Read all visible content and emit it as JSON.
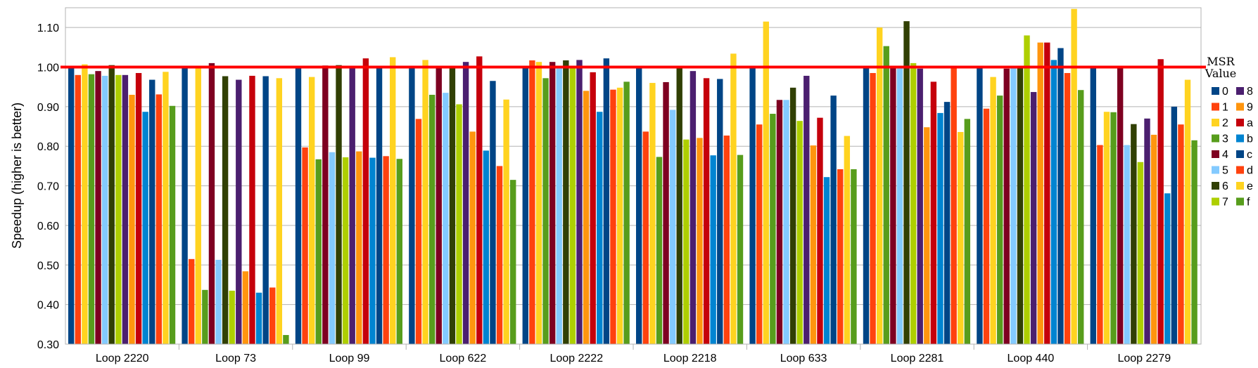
{
  "chart_data": {
    "type": "bar",
    "ylabel": "Speedup (higher is better)",
    "xlabel": "",
    "ylim": [
      0.3,
      1.15
    ],
    "yticks": [
      "0.30",
      "0.40",
      "0.50",
      "0.60",
      "0.70",
      "0.80",
      "0.90",
      "1.00",
      "1.10"
    ],
    "grid": true,
    "reference_line": 1.0,
    "legend_title_line1": "MSR",
    "legend_title_line2": "Value",
    "legend_placement": "right",
    "categories": [
      "Loop 2220",
      "Loop 73",
      "Loop 99",
      "Loop 622",
      "Loop 2222",
      "Loop 2218",
      "Loop 633",
      "Loop 2281",
      "Loop 440",
      "Loop 2279"
    ],
    "series": [
      {
        "name": "0",
        "color": "#004586",
        "values": [
          1.0,
          1.0,
          1.0,
          1.0,
          1.0,
          1.0,
          1.0,
          1.0,
          1.0,
          1.0
        ]
      },
      {
        "name": "1",
        "color": "#ff420e",
        "values": [
          0.98,
          0.515,
          0.797,
          0.869,
          1.017,
          0.837,
          0.855,
          0.985,
          0.895,
          0.803
        ]
      },
      {
        "name": "2",
        "color": "#ffd320",
        "values": [
          1.007,
          1.0,
          0.975,
          1.018,
          1.013,
          0.96,
          1.115,
          1.1,
          0.975,
          0.887
        ]
      },
      {
        "name": "3",
        "color": "#579d1c",
        "values": [
          0.982,
          0.437,
          0.767,
          0.93,
          0.972,
          0.773,
          0.882,
          1.053,
          0.928,
          0.886
        ]
      },
      {
        "name": "4",
        "color": "#7e0021",
        "values": [
          0.99,
          1.01,
          1.004,
          1.0,
          1.013,
          0.962,
          0.917,
          1.0,
          0.996,
          1.0
        ]
      },
      {
        "name": "5",
        "color": "#83caff",
        "values": [
          0.978,
          0.513,
          0.785,
          0.935,
          0.997,
          0.892,
          0.917,
          1.0,
          0.997,
          0.803
        ]
      },
      {
        "name": "6",
        "color": "#314004",
        "values": [
          1.005,
          0.977,
          1.005,
          1.0,
          1.017,
          1.0,
          0.948,
          1.116,
          1.0,
          0.856
        ]
      },
      {
        "name": "7",
        "color": "#aecf00",
        "values": [
          0.98,
          0.435,
          0.772,
          0.906,
          1.0,
          0.817,
          0.864,
          1.01,
          1.08,
          0.76
        ]
      },
      {
        "name": "8",
        "color": "#4b1f6f",
        "values": [
          0.98,
          0.968,
          1.0,
          1.013,
          1.018,
          0.99,
          0.978,
          0.996,
          0.937,
          0.87
        ]
      },
      {
        "name": "9",
        "color": "#ff950e",
        "values": [
          0.93,
          0.484,
          0.787,
          0.837,
          0.94,
          0.821,
          0.802,
          0.848,
          1.062,
          0.829
        ]
      },
      {
        "name": "a",
        "color": "#c5000b",
        "values": [
          0.985,
          0.978,
          1.022,
          1.027,
          0.987,
          0.972,
          0.872,
          0.963,
          1.062,
          1.02
        ]
      },
      {
        "name": "b",
        "color": "#0084d1",
        "values": [
          0.887,
          0.43,
          0.771,
          0.789,
          0.887,
          0.777,
          0.722,
          0.884,
          1.018,
          0.681
        ]
      },
      {
        "name": "c",
        "color": "#004586",
        "values": [
          0.968,
          0.977,
          1.0,
          0.965,
          1.022,
          0.97,
          0.928,
          0.912,
          1.048,
          0.9
        ]
      },
      {
        "name": "d",
        "color": "#ff420e",
        "values": [
          0.931,
          0.443,
          0.775,
          0.75,
          0.943,
          0.827,
          0.742,
          1.0,
          0.985,
          0.855
        ]
      },
      {
        "name": "e",
        "color": "#ffd320",
        "values": [
          0.988,
          0.972,
          1.025,
          0.918,
          0.948,
          1.034,
          0.826,
          0.836,
          1.147,
          0.968
        ]
      },
      {
        "name": "f",
        "color": "#579d1c",
        "values": [
          0.902,
          0.323,
          0.768,
          0.715,
          0.963,
          0.778,
          0.742,
          0.869,
          0.942,
          0.815
        ]
      }
    ]
  }
}
